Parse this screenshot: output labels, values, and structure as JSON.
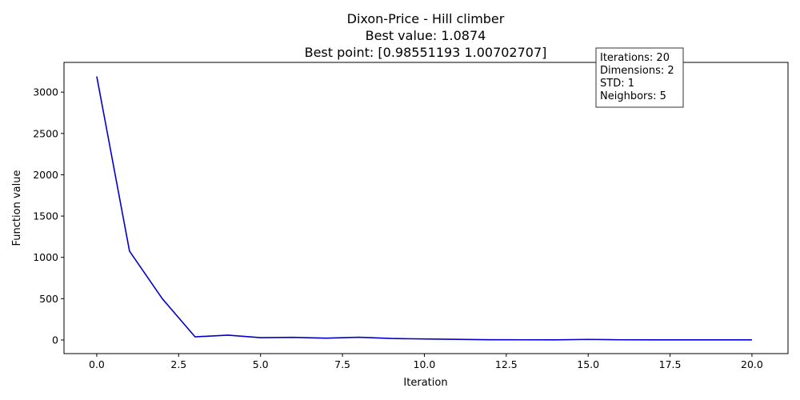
{
  "chart_data": {
    "type": "line",
    "title_lines": [
      "Dixon-Price - Hill climber",
      "Best value: 1.0874",
      "Best point: [0.98551193 1.00702707]"
    ],
    "xlabel": "Iteration",
    "ylabel": "Function value",
    "xlim": [
      -1,
      21.1
    ],
    "ylim": [
      -165,
      3360
    ],
    "xticks": [
      0,
      2.5,
      5,
      7.5,
      10,
      12.5,
      15,
      17.5,
      20
    ],
    "xtick_labels": [
      "0.0",
      "2.5",
      "5.0",
      "7.5",
      "10.0",
      "12.5",
      "15.0",
      "17.5",
      "20.0"
    ],
    "yticks": [
      0,
      500,
      1000,
      1500,
      2000,
      2500,
      3000
    ],
    "ytick_labels": [
      "0",
      "500",
      "1000",
      "1500",
      "2000",
      "2500",
      "3000"
    ],
    "grid": false,
    "series": [
      {
        "color": "#0000cc",
        "x": [
          0,
          1,
          2,
          3,
          4,
          5,
          6,
          7,
          8,
          9,
          10,
          11,
          12,
          13,
          14,
          15,
          16,
          17,
          18,
          19,
          20
        ],
        "y": [
          3190,
          1075,
          500,
          38,
          58,
          28,
          32,
          22,
          33,
          18,
          12,
          8,
          3,
          2,
          1,
          7,
          2,
          1.5,
          1.2,
          1.1,
          1.0874
        ]
      }
    ],
    "info_box": {
      "lines": [
        "Iterations: 20",
        "Dimensions: 2",
        "STD: 1",
        "Neighbors: 5"
      ]
    }
  }
}
